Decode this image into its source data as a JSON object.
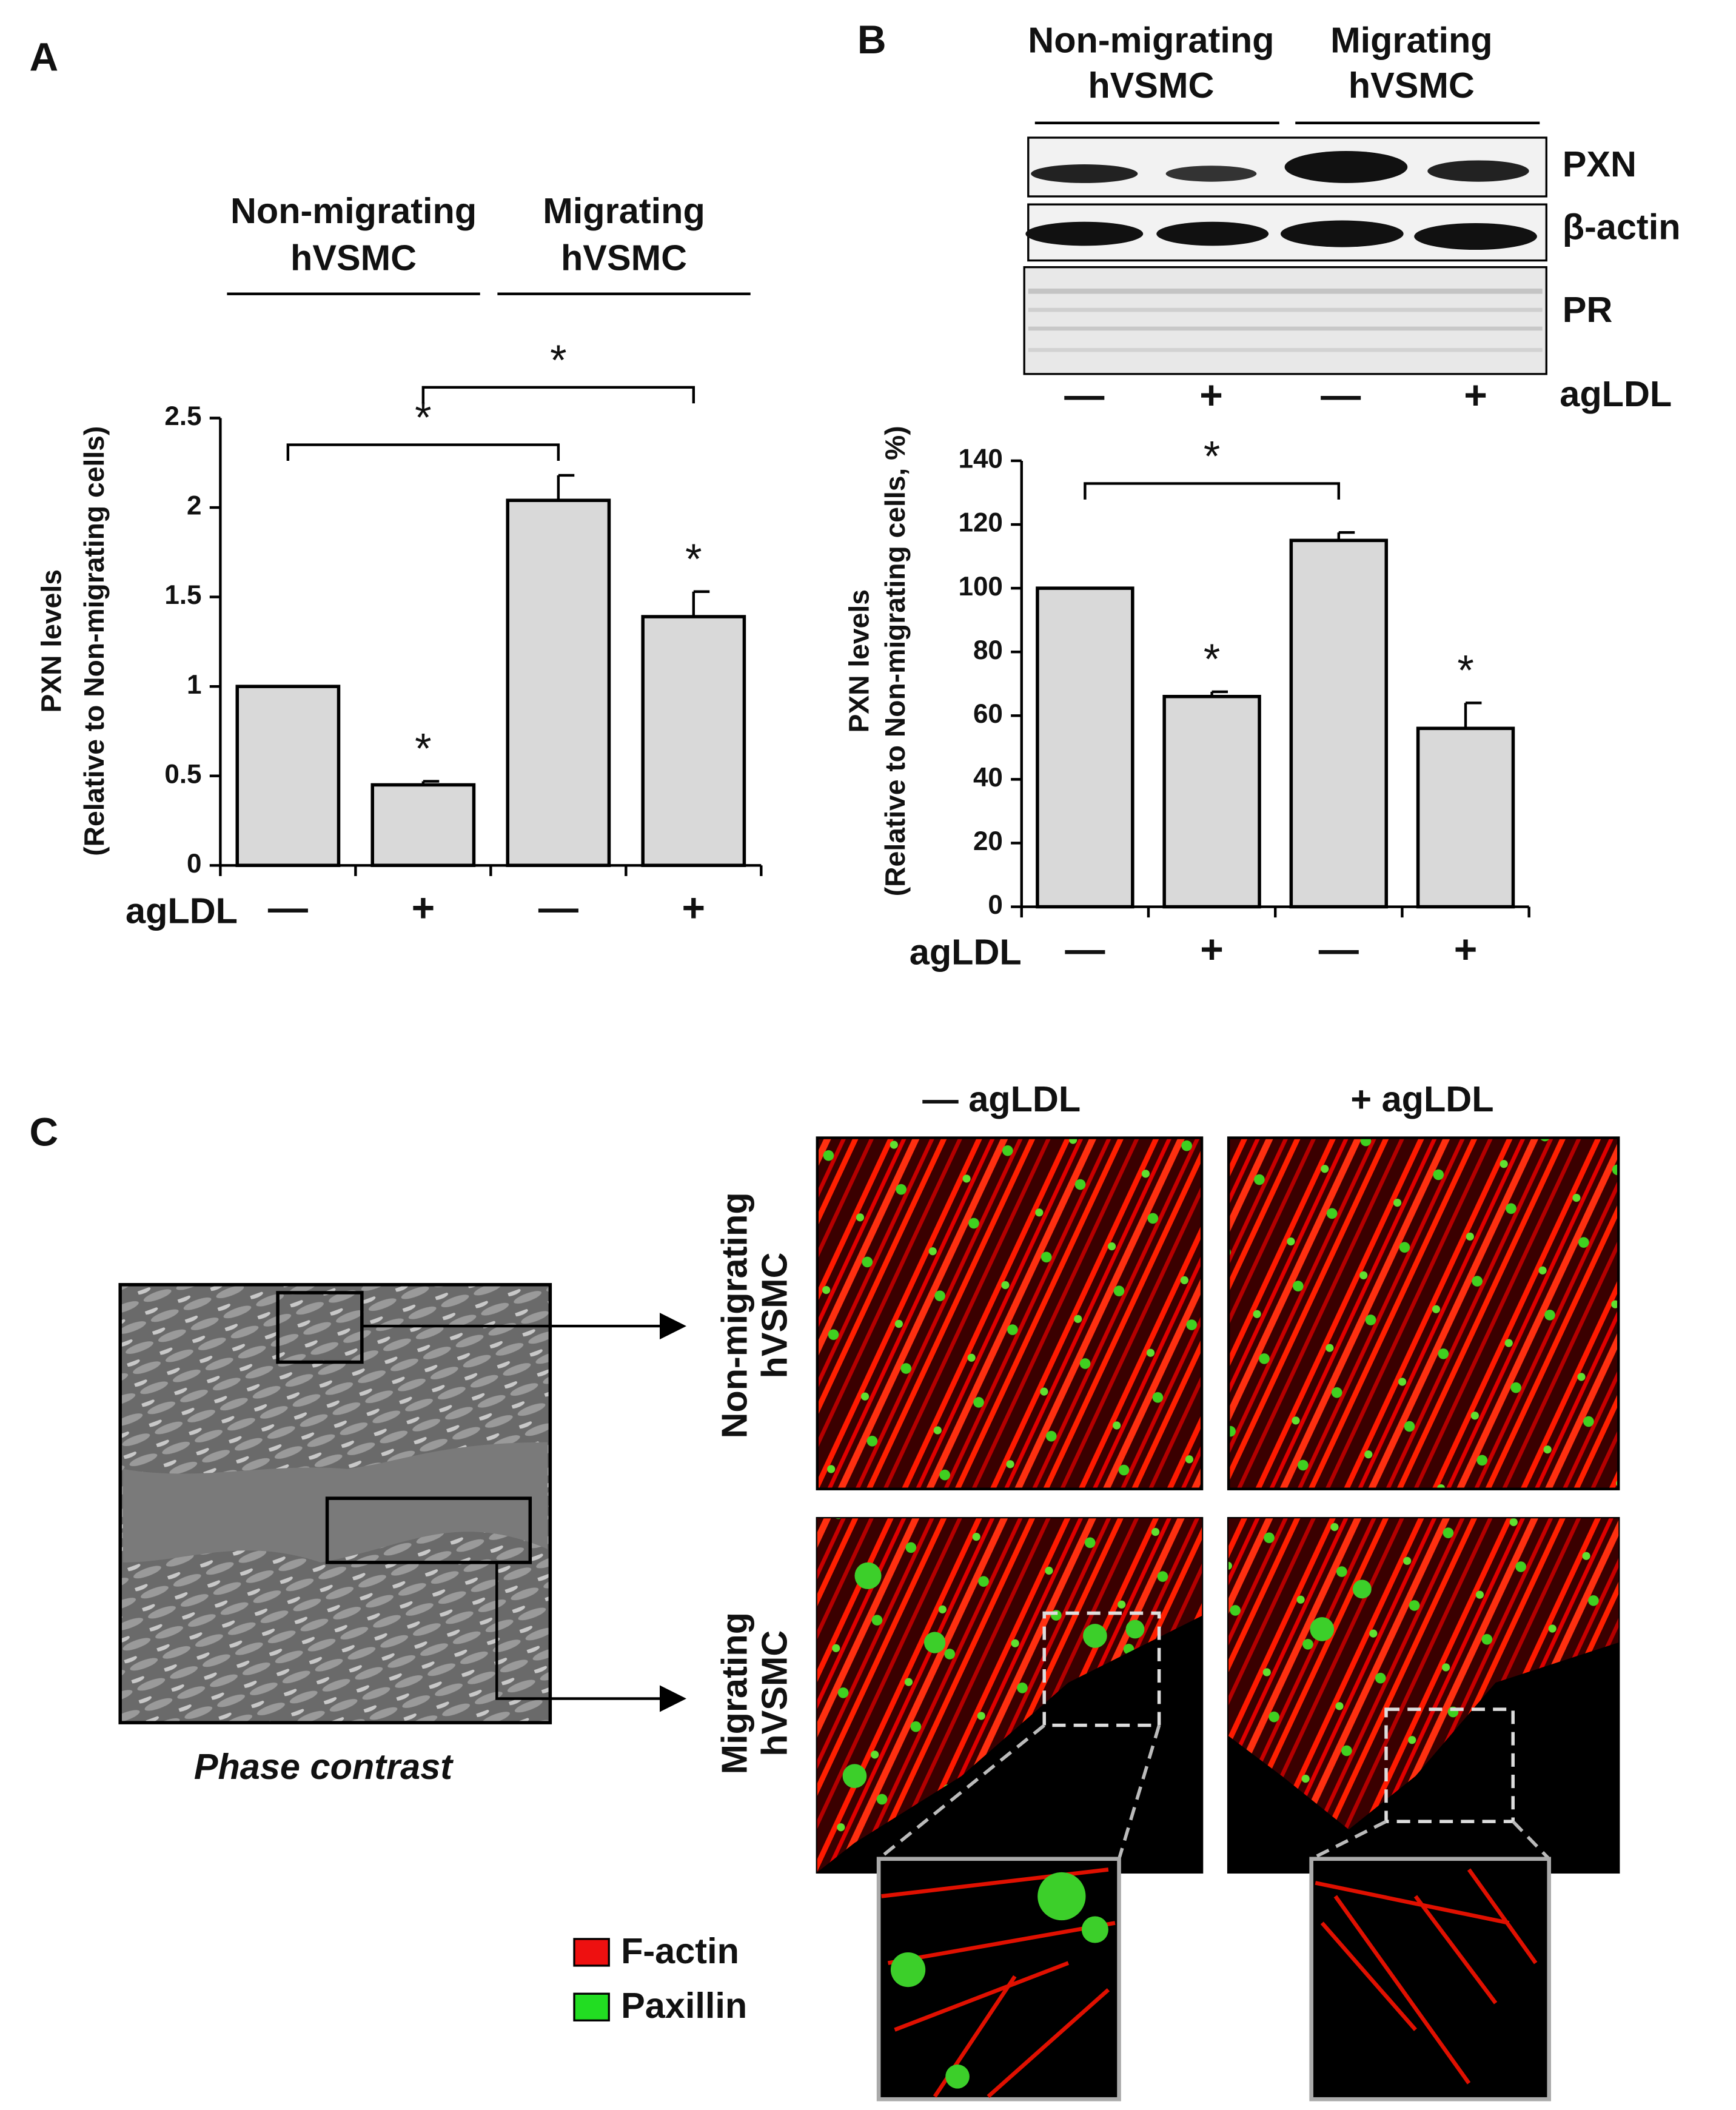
{
  "panel_labels": [
    "A",
    "B",
    "C"
  ],
  "chart_data": [
    {
      "type": "bar",
      "groups": [
        [
          "Non-migrating",
          "hVSMC"
        ],
        [
          "Migrating",
          "hVSMC"
        ]
      ],
      "y_label": [
        "PXN levels",
        "(Relative to Non-migrating cells)"
      ],
      "x_label": "agLDL",
      "categories": [
        "—",
        "+",
        "—",
        "+"
      ],
      "values": [
        1,
        0.45,
        2.04,
        1.39
      ],
      "errors": [
        null,
        0.02,
        0.14,
        0.14
      ],
      "color": "#d9d9d9",
      "ylim": [
        0,
        2.5
      ],
      "yticks": [
        0,
        0.5,
        1,
        1.5,
        2,
        2.5
      ],
      "annotations": [
        "*",
        "*",
        "*",
        "*"
      ]
    },
    {
      "type": "bar",
      "y_label": [
        "PXN levels",
        "(Relative to Non-migrating cells, %)"
      ],
      "x_label": "agLDL",
      "categories": [
        "—",
        "+",
        "—",
        "+"
      ],
      "values": [
        100,
        66,
        115,
        56
      ],
      "errors": [
        null,
        1.5,
        2.5,
        8
      ],
      "color": "#d9d9d9",
      "ylim": [
        0,
        140
      ],
      "yticks": [
        0,
        20,
        40,
        60,
        80,
        100,
        120,
        140
      ],
      "annotations": [
        "*",
        "*",
        "*"
      ]
    }
  ],
  "blot": {
    "groups": [
      [
        "Non-migrating",
        "hVSMC"
      ],
      [
        "Migrating",
        "hVSMC"
      ]
    ],
    "rows": [
      "PXN",
      "β-actin",
      "PR"
    ],
    "lanes": [
      "—",
      "+",
      "—",
      "+"
    ],
    "treatment": "agLDL"
  },
  "panel_c": {
    "columns": [
      "— agLDL",
      "+ agLDL"
    ],
    "rows": [
      [
        "Non-migrating",
        "hVSMC"
      ],
      [
        "Migrating",
        "hVSMC"
      ]
    ],
    "phase_label": "Phase contrast",
    "legend": [
      "F-actin",
      "Paxillin"
    ]
  }
}
